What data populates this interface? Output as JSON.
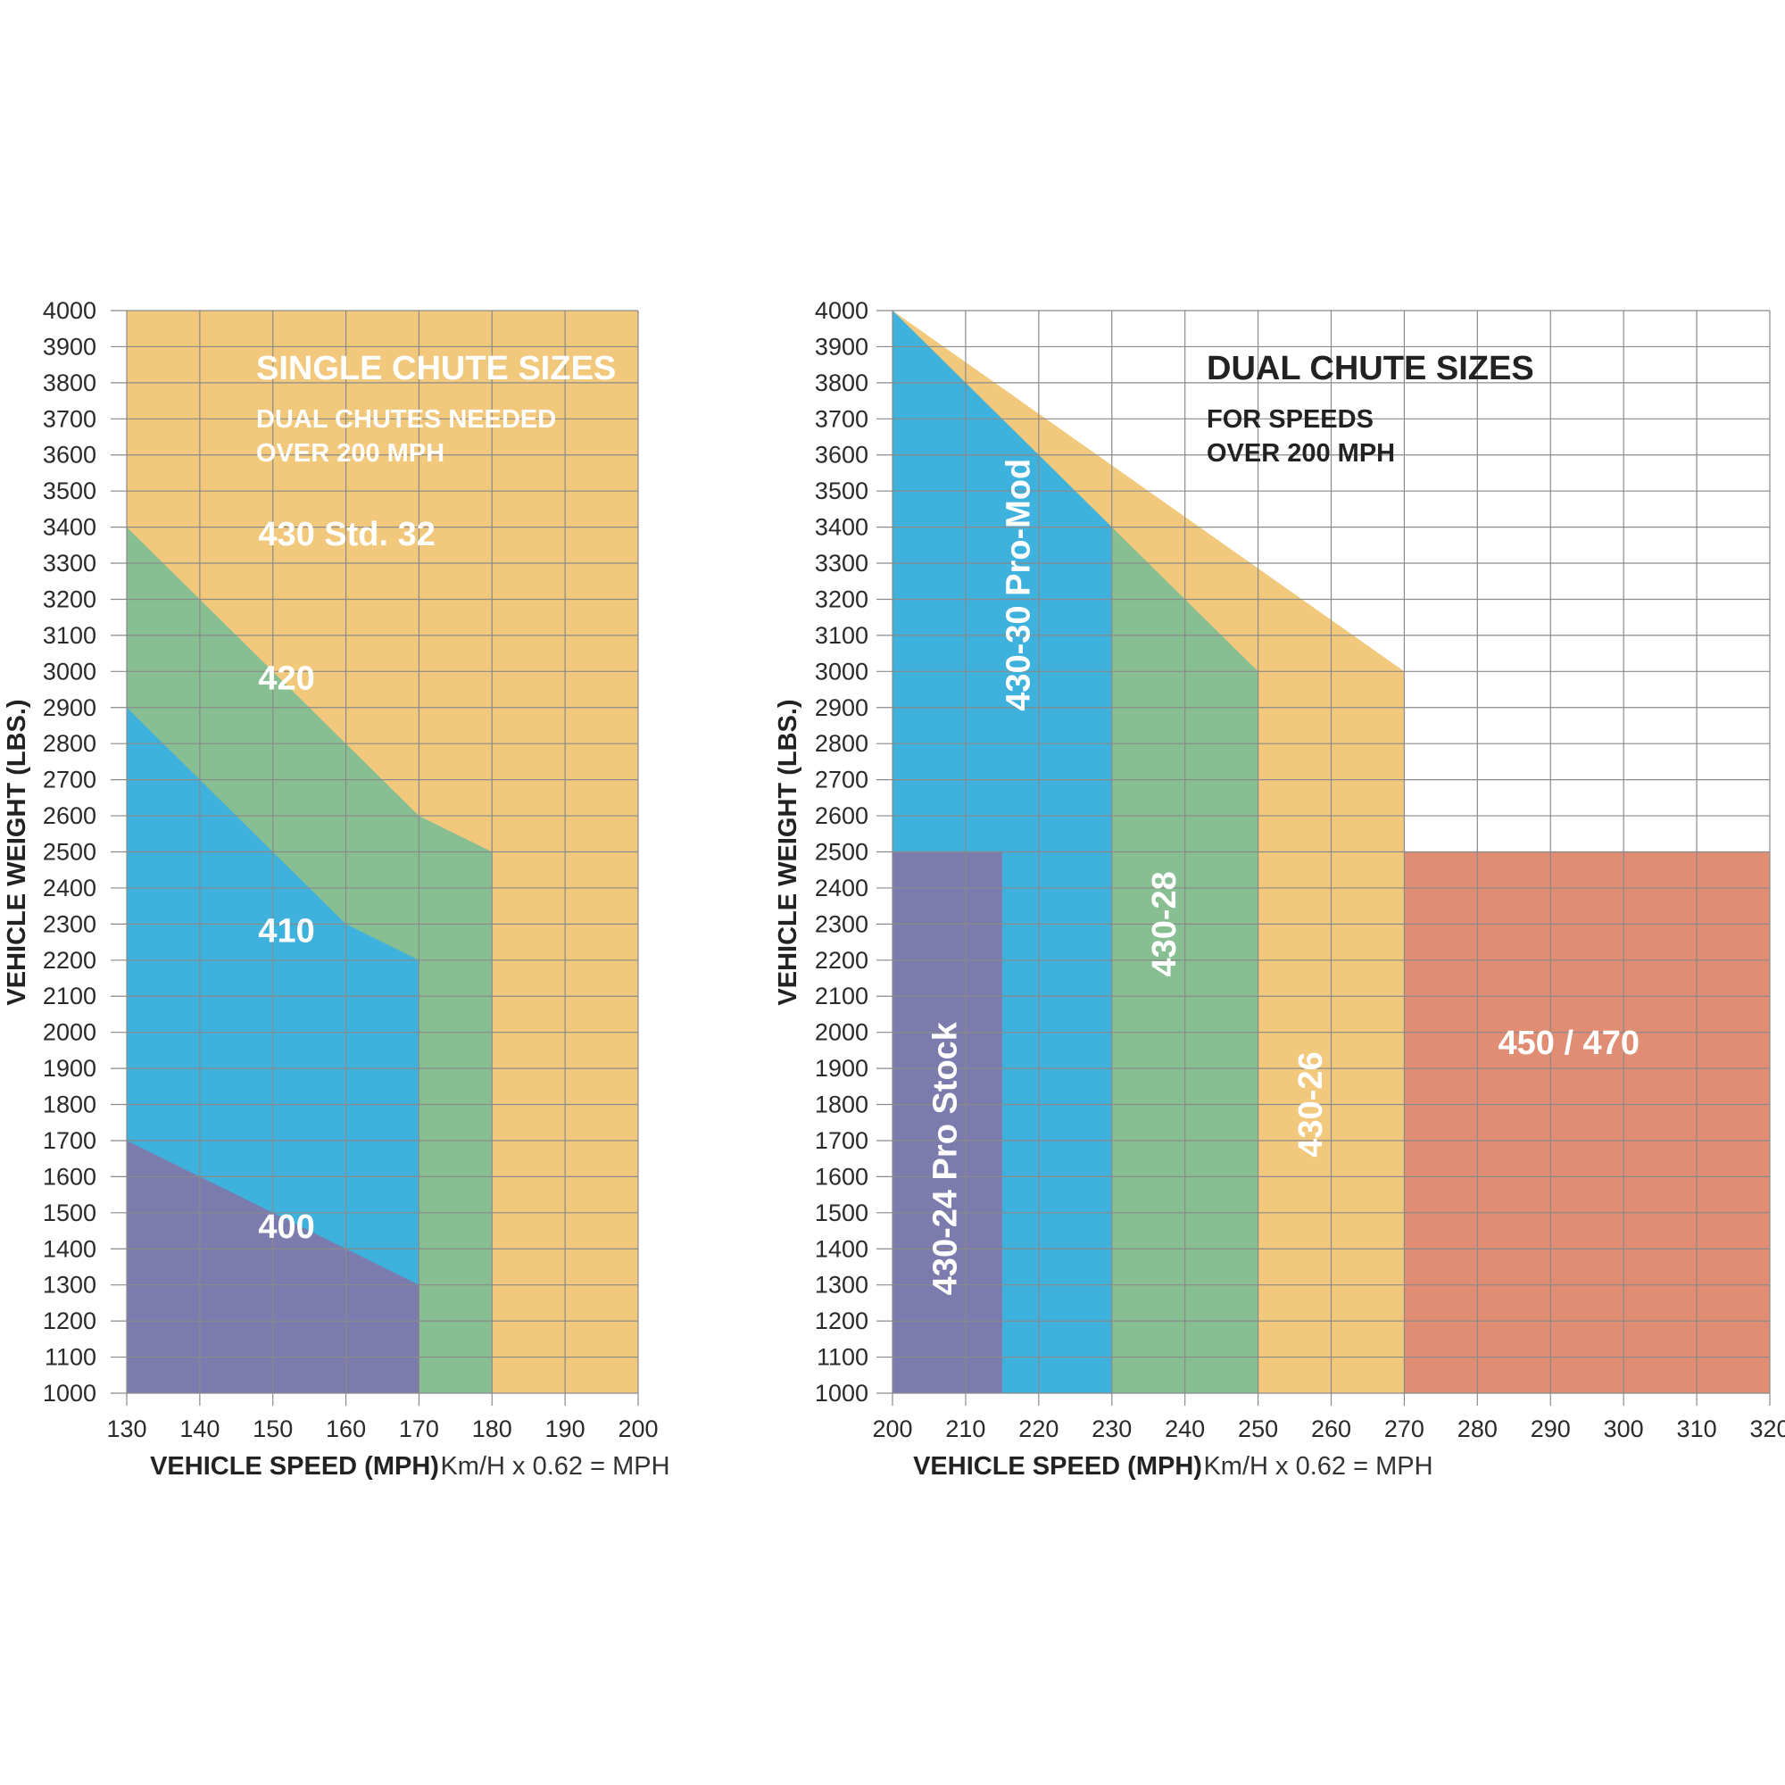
{
  "colors": {
    "purple": "#7C7BAE",
    "blue": "#3FB1DD",
    "green": "#88BF92",
    "orange": "#F2C97C",
    "salmon": "#E08D73"
  },
  "chart_data": [
    {
      "type": "area",
      "id": "single",
      "title": "SINGLE CHUTE SIZES",
      "subtitle": [
        "DUAL CHUTES NEEDED",
        "OVER 200 MPH"
      ],
      "xlabel": "VEHICLE SPEED (MPH)",
      "ylabel": "VEHICLE WEIGHT (LBS.)",
      "note": "Km/H x 0.62 = MPH",
      "xlim": [
        130,
        200
      ],
      "ylim": [
        1000,
        4000
      ],
      "xticks": [
        130,
        140,
        150,
        160,
        170,
        180,
        190,
        200
      ],
      "yticks": [
        1000,
        1100,
        1200,
        1300,
        1400,
        1500,
        1600,
        1700,
        1800,
        1900,
        2000,
        2100,
        2200,
        2300,
        2400,
        2500,
        2600,
        2700,
        2800,
        2900,
        3000,
        3100,
        3200,
        3300,
        3400,
        3500,
        3600,
        3700,
        3800,
        3900,
        4000
      ],
      "regions": [
        {
          "name": "430 Std. 32",
          "color": "orange",
          "polygon": [
            [
              130,
              1000
            ],
            [
              200,
              1000
            ],
            [
              200,
              4000
            ],
            [
              130,
              4000
            ]
          ]
        },
        {
          "name": "420",
          "color": "green",
          "polygon": [
            [
              130,
              1000
            ],
            [
              180,
              1000
            ],
            [
              180,
              2500
            ],
            [
              170,
              2600
            ],
            [
              150,
              3000
            ],
            [
              130,
              3400
            ]
          ]
        },
        {
          "name": "410",
          "color": "blue",
          "polygon": [
            [
              130,
              1000
            ],
            [
              170,
              1000
            ],
            [
              170,
              2200
            ],
            [
              160,
              2300
            ],
            [
              150,
              2500
            ],
            [
              130,
              2900
            ]
          ]
        },
        {
          "name": "400",
          "color": "purple",
          "polygon": [
            [
              130,
              1000
            ],
            [
              170,
              1000
            ],
            [
              170,
              1300
            ],
            [
              150,
              1500
            ],
            [
              130,
              1700
            ]
          ]
        }
      ],
      "labels": [
        {
          "text": "430 Std. 32",
          "at": [
            148,
            3350
          ]
        },
        {
          "text": "420",
          "at": [
            148,
            2950
          ]
        },
        {
          "text": "410",
          "at": [
            148,
            2250
          ]
        },
        {
          "text": "400",
          "at": [
            148,
            1430
          ]
        }
      ]
    },
    {
      "type": "area",
      "id": "dual",
      "title": "DUAL CHUTE SIZES",
      "subtitle": [
        "FOR SPEEDS",
        "OVER 200 MPH"
      ],
      "xlabel": "VEHICLE SPEED (MPH)",
      "ylabel": "VEHICLE WEIGHT (LBS.)",
      "note": "Km/H x 0.62 = MPH",
      "xlim": [
        200,
        320
      ],
      "ylim": [
        1000,
        4000
      ],
      "xticks": [
        200,
        210,
        220,
        230,
        240,
        250,
        260,
        270,
        280,
        290,
        300,
        310,
        320
      ],
      "yticks": [
        1000,
        1100,
        1200,
        1300,
        1400,
        1500,
        1600,
        1700,
        1800,
        1900,
        2000,
        2100,
        2200,
        2300,
        2400,
        2500,
        2600,
        2700,
        2800,
        2900,
        3000,
        3100,
        3200,
        3300,
        3400,
        3500,
        3600,
        3700,
        3800,
        3900,
        4000
      ],
      "regions": [
        {
          "name": "430-26",
          "color": "orange",
          "polygon": [
            [
              200,
              1000
            ],
            [
              270,
              1000
            ],
            [
              270,
              3000
            ],
            [
              200,
              4000
            ]
          ]
        },
        {
          "name": "430-28",
          "color": "green",
          "polygon": [
            [
              200,
              1000
            ],
            [
              250,
              1000
            ],
            [
              250,
              3000
            ],
            [
              230,
              3400
            ],
            [
              200,
              4000
            ]
          ]
        },
        {
          "name": "430-30 Pro-Mod",
          "color": "blue",
          "polygon": [
            [
              200,
              1000
            ],
            [
              230,
              1000
            ],
            [
              230,
              3400
            ],
            [
              200,
              4000
            ]
          ]
        },
        {
          "name": "430-24 Pro Stock",
          "color": "purple",
          "polygon": [
            [
              200,
              1000
            ],
            [
              215,
              1000
            ],
            [
              215,
              2500
            ],
            [
              200,
              2500
            ]
          ]
        },
        {
          "name": "450 / 470",
          "color": "salmon",
          "polygon": [
            [
              270,
              1000
            ],
            [
              320,
              1000
            ],
            [
              320,
              2500
            ],
            [
              270,
              2500
            ]
          ]
        }
      ],
      "labels": [
        {
          "text": "430-24 Pro Stock",
          "at": [
            207.5,
            1650
          ],
          "rotate": -90
        },
        {
          "text": "430-30 Pro-Mod",
          "at": [
            217.5,
            3240
          ],
          "rotate": -90
        },
        {
          "text": "430-28",
          "at": [
            237.5,
            2300
          ],
          "rotate": -90
        },
        {
          "text": "430-26",
          "at": [
            257.5,
            1800
          ],
          "rotate": -90
        },
        {
          "text": "450 / 470",
          "at": [
            292.5,
            1940
          ]
        }
      ]
    }
  ]
}
